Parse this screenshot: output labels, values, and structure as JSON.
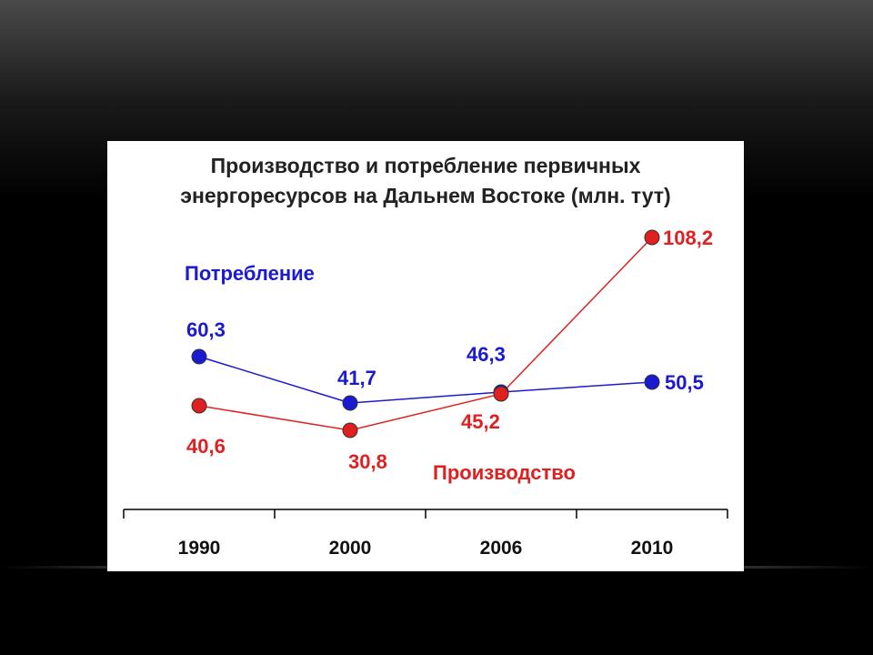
{
  "chart_data": {
    "type": "line",
    "title_line1": "Производство и потребление первичных",
    "title_line2": "энергоресурсов на Дальнем Востоке (млн. тут)",
    "categories": [
      "1990",
      "2000",
      "2006",
      "2010"
    ],
    "series": [
      {
        "name": "Потребление",
        "color": "#1a1ad0",
        "values": [
          60.3,
          41.7,
          46.3,
          50.5
        ],
        "labels": [
          "60,3",
          "41,7",
          "46,3",
          "50,5"
        ]
      },
      {
        "name": "Производство",
        "color": "#e02020",
        "values": [
          40.6,
          30.8,
          45.2,
          108.2
        ],
        "labels": [
          "40,6",
          "30,8",
          "45,2",
          "108,2"
        ]
      }
    ],
    "grid": false,
    "legend": "inline labels"
  }
}
